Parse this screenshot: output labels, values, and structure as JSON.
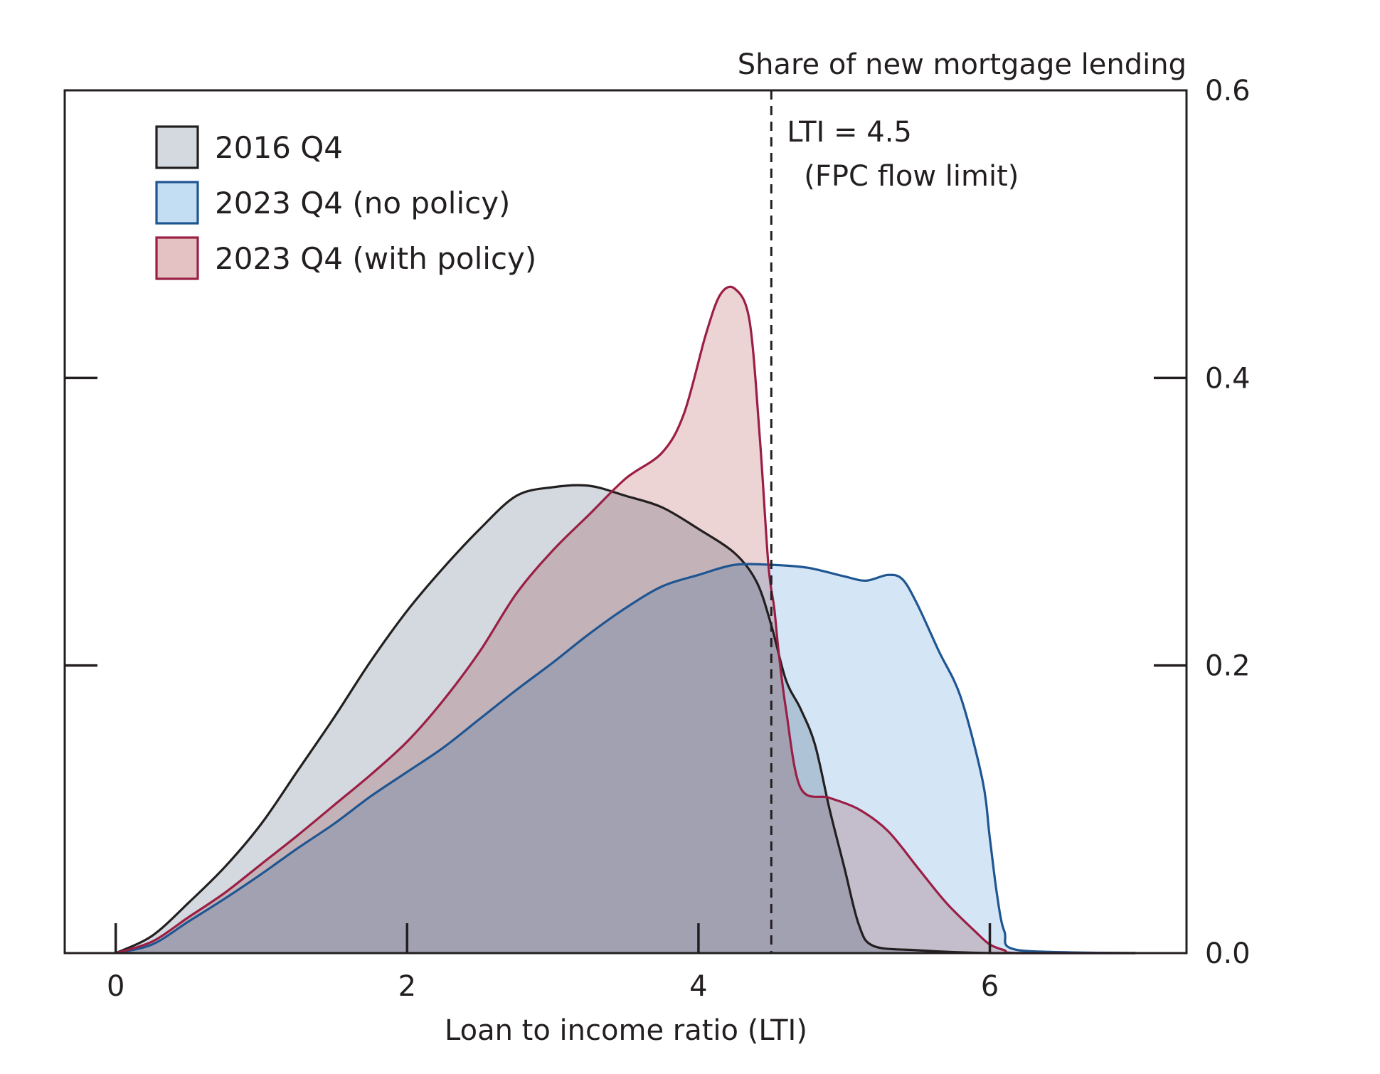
{
  "chart_data": {
    "type": "area",
    "title": "",
    "xlabel": "Loan to income ratio (LTI)",
    "ylabel": "Share of new mortgage lending",
    "xlim": [
      -0.35,
      7.35
    ],
    "ylim": [
      0,
      0.6
    ],
    "x_ticks": [
      "0",
      "2",
      "4",
      "6"
    ],
    "y_ticks": [
      "0.0",
      "0.2",
      "0.4",
      "0.6"
    ],
    "y_axis_side": "right",
    "legend_position": "top-left",
    "grid": false,
    "reference_line": {
      "x": 4.5,
      "label_line1": "LTI = 4.5",
      "label_line2": "(FPC flow limit)"
    },
    "series": [
      {
        "name": "2016 Q4",
        "fill": "#d3d9de",
        "stroke": "#231f20",
        "x": [
          0,
          0.25,
          0.5,
          0.75,
          1.0,
          1.25,
          1.5,
          1.75,
          2.0,
          2.25,
          2.5,
          2.75,
          3.0,
          3.25,
          3.5,
          3.75,
          4.0,
          4.25,
          4.4,
          4.5,
          4.6,
          4.7,
          4.8,
          4.9,
          5.0,
          5.1,
          5.2,
          5.5,
          6.0,
          7.0
        ],
        "y": [
          0.0,
          0.012,
          0.035,
          0.06,
          0.09,
          0.127,
          0.164,
          0.203,
          0.238,
          0.268,
          0.295,
          0.318,
          0.324,
          0.325,
          0.318,
          0.31,
          0.295,
          0.278,
          0.258,
          0.228,
          0.19,
          0.17,
          0.145,
          0.1,
          0.06,
          0.02,
          0.005,
          0.002,
          0.0,
          0.0
        ]
      },
      {
        "name": "2023 Q4 (no policy)",
        "fill": "#c3ddf2",
        "stroke": "#1f5591",
        "x": [
          0,
          0.25,
          0.5,
          0.75,
          1.0,
          1.25,
          1.5,
          1.75,
          2.0,
          2.25,
          2.5,
          2.75,
          3.0,
          3.25,
          3.5,
          3.75,
          4.0,
          4.25,
          4.5,
          4.75,
          5.0,
          5.15,
          5.3,
          5.4,
          5.5,
          5.65,
          5.8,
          5.95,
          6.0,
          6.05,
          6.1,
          6.2,
          7.0
        ],
        "y": [
          0.0,
          0.006,
          0.022,
          0.038,
          0.055,
          0.073,
          0.09,
          0.109,
          0.126,
          0.143,
          0.163,
          0.183,
          0.202,
          0.222,
          0.24,
          0.255,
          0.263,
          0.27,
          0.27,
          0.268,
          0.262,
          0.259,
          0.263,
          0.26,
          0.243,
          0.21,
          0.178,
          0.12,
          0.08,
          0.04,
          0.015,
          0.002,
          0.0
        ]
      },
      {
        "name": "2023 Q4 (with policy)",
        "fill": "#e4c2c4",
        "stroke": "#9b1e45",
        "x": [
          0,
          0.25,
          0.5,
          0.75,
          1.0,
          1.25,
          1.5,
          1.75,
          2.0,
          2.25,
          2.5,
          2.75,
          3.0,
          3.25,
          3.5,
          3.75,
          3.9,
          4.05,
          4.15,
          4.25,
          4.35,
          4.42,
          4.48,
          4.52,
          4.55,
          4.6,
          4.7,
          4.9,
          5.1,
          5.3,
          5.5,
          5.7,
          5.9,
          6.0,
          6.1,
          6.2,
          7.0
        ],
        "y": [
          0.0,
          0.008,
          0.025,
          0.042,
          0.062,
          0.082,
          0.103,
          0.124,
          0.147,
          0.176,
          0.21,
          0.25,
          0.28,
          0.305,
          0.33,
          0.348,
          0.375,
          0.43,
          0.458,
          0.462,
          0.44,
          0.36,
          0.27,
          0.24,
          0.21,
          0.17,
          0.115,
          0.108,
          0.1,
          0.085,
          0.06,
          0.035,
          0.015,
          0.006,
          0.002,
          0.0,
          0.0
        ]
      }
    ]
  }
}
